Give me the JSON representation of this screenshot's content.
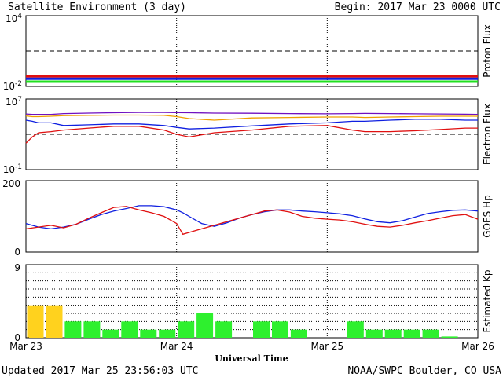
{
  "header": {
    "title": "Satellite Environment (3 day)",
    "begin": "Begin:  2017 Mar 23 0000 UTC"
  },
  "footer": {
    "updated": "Updated 2017 Mar 25 23:56:03 UTC",
    "credit": "NOAA/SWPC Boulder, CO USA"
  },
  "x_axis": {
    "label": "Universal Time",
    "ticks": [
      "Mar 23",
      "Mar 24",
      "Mar 25",
      "Mar 26"
    ]
  },
  "colors": {
    "red": "#e01010",
    "blue": "#1020e0",
    "green": "#20e020",
    "orange": "#f0a000",
    "purple": "#7010c0",
    "kp_yellow": "#ffd21e",
    "kp_green": "#2ef02e"
  },
  "chart_data": [
    {
      "type": "line",
      "ylabel": "Proton Flux",
      "yscale": "log",
      "ylim": [
        0.01,
        10000
      ],
      "ytick_base": "10",
      "yticks": [
        {
          "value": 10000,
          "exp": "4"
        },
        {
          "value": 0.01,
          "exp": "-2"
        }
      ],
      "threshold": 10,
      "x": [
        0,
        12,
        24,
        36,
        48,
        60,
        72
      ],
      "series": [
        {
          "color": "red",
          "values": [
            0.07,
            0.07,
            0.07,
            0.07,
            0.07,
            0.07,
            0.07
          ]
        },
        {
          "color": "blue",
          "values": [
            0.045,
            0.045,
            0.045,
            0.045,
            0.045,
            0.045,
            0.045
          ]
        },
        {
          "color": "green",
          "values": [
            0.025,
            0.025,
            0.025,
            0.025,
            0.025,
            0.025,
            0.025
          ]
        }
      ]
    },
    {
      "type": "line",
      "ylabel": "Electron Flux",
      "yscale": "log",
      "ylim": [
        0.1,
        10000000
      ],
      "ytick_base": "10",
      "yticks": [
        {
          "value": 10000000,
          "exp": "7"
        },
        {
          "value": 0.1,
          "exp": "-1"
        }
      ],
      "threshold": 1000,
      "x": [
        0,
        1,
        2,
        4,
        6,
        10,
        14,
        18,
        22,
        24,
        26,
        30,
        36,
        42,
        48,
        52,
        54,
        58,
        62,
        66,
        70,
        72
      ],
      "series": [
        {
          "color": "purple",
          "values": [
            200000,
            180000,
            180000,
            180000,
            220000,
            250000,
            280000,
            300000,
            300000,
            290000,
            280000,
            250000,
            240000,
            220000,
            210000,
            220000,
            230000,
            220000,
            210000,
            200000,
            190000,
            180000
          ]
        },
        {
          "color": "orange",
          "values": [
            120000,
            100000,
            100000,
            110000,
            130000,
            140000,
            150000,
            150000,
            140000,
            100000,
            60000,
            40000,
            70000,
            80000,
            90000,
            90000,
            80000,
            90000,
            100000,
            110000,
            110000,
            110000
          ]
        },
        {
          "color": "blue",
          "values": [
            40000,
            30000,
            20000,
            20000,
            10000,
            12000,
            15000,
            15000,
            10000,
            6000,
            4000,
            5000,
            9000,
            15000,
            20000,
            30000,
            30000,
            40000,
            50000,
            50000,
            40000,
            40000
          ]
        },
        {
          "color": "red",
          "values": [
            100,
            500,
            1500,
            2000,
            3000,
            5000,
            8000,
            8000,
            3000,
            1000,
            500,
            1500,
            3000,
            8000,
            10000,
            3000,
            2000,
            2000,
            2500,
            3500,
            5000,
            5000
          ]
        }
      ]
    },
    {
      "type": "line",
      "ylabel": "GOES Hp",
      "yscale": "linear",
      "ylim": [
        0,
        200
      ],
      "yticks": [
        {
          "value": 200,
          "label": "200"
        },
        {
          "value": 0,
          "label": "0"
        }
      ],
      "x": [
        0,
        2,
        4,
        6,
        8,
        10,
        12,
        14,
        16,
        18,
        20,
        22,
        24,
        25,
        26,
        28,
        30,
        32,
        34,
        36,
        38,
        40,
        42,
        44,
        46,
        48,
        50,
        52,
        54,
        56,
        58,
        60,
        62,
        64,
        66,
        68,
        70,
        72
      ],
      "series": [
        {
          "color": "blue",
          "values": [
            80,
            70,
            65,
            70,
            78,
            92,
            105,
            115,
            122,
            130,
            130,
            127,
            118,
            110,
            100,
            80,
            72,
            82,
            95,
            105,
            113,
            118,
            118,
            115,
            113,
            110,
            107,
            102,
            93,
            85,
            82,
            88,
            98,
            108,
            113,
            117,
            118,
            115
          ]
        },
        {
          "color": "red",
          "values": [
            65,
            70,
            75,
            68,
            78,
            95,
            110,
            125,
            128,
            118,
            110,
            100,
            80,
            50,
            55,
            65,
            75,
            85,
            95,
            105,
            115,
            118,
            112,
            100,
            95,
            92,
            90,
            85,
            78,
            72,
            70,
            75,
            82,
            88,
            95,
            102,
            105,
            92
          ]
        }
      ]
    },
    {
      "type": "bar",
      "ylabel": "Estimated Kp",
      "ylim": [
        0,
        9
      ],
      "yticks": [
        {
          "value": 9,
          "label": "9"
        },
        {
          "value": 0,
          "label": "0"
        }
      ],
      "threshold": 5,
      "bin_hours": 3,
      "values": [
        4,
        4,
        2,
        2,
        1,
        2,
        1,
        1,
        2,
        3,
        2,
        0,
        2,
        2,
        1,
        0,
        0,
        2,
        1,
        1,
        1,
        1,
        0.15,
        0
      ],
      "bar_color_rule": {
        "below_threshold": "kp_green",
        "at_or_above_3.5": "kp_yellow"
      }
    }
  ]
}
